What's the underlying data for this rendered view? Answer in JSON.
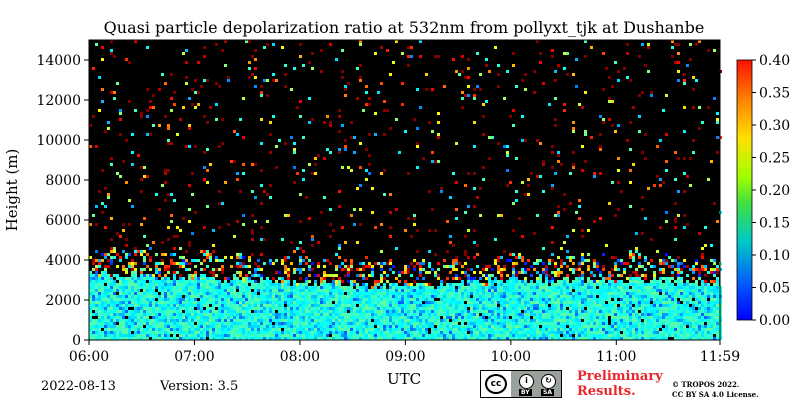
{
  "chart_data": {
    "type": "heatmap",
    "title": "Quasi particle depolarization ratio at 532nm from pollyxt_tjk at Dushanbe",
    "xlabel": "UTC",
    "ylabel": "Height (m)",
    "xticks": [
      "06:00",
      "07:00",
      "08:00",
      "09:00",
      "10:00",
      "11:00",
      "11:59"
    ],
    "xlim": [
      "06:00",
      "11:59"
    ],
    "yticks": [
      0,
      2000,
      4000,
      6000,
      8000,
      10000,
      12000,
      14000
    ],
    "ylim": [
      0,
      15000
    ],
    "colorbar": {
      "ticks": [
        "0.00",
        "0.05",
        "0.10",
        "0.15",
        "0.20",
        "0.25",
        "0.30",
        "0.35",
        "0.40"
      ],
      "range": [
        0,
        0.4
      ],
      "colormap": "jet"
    },
    "background_color": "#000000",
    "aerosol_layer": {
      "top_height_m": [
        3400,
        3200,
        2900,
        2800,
        3000,
        3100,
        3000
      ],
      "times": [
        "06:00",
        "07:00",
        "08:00",
        "09:00",
        "10:00",
        "11:00",
        "11:59"
      ],
      "typical_value_range": [
        0.1,
        0.2
      ]
    }
  },
  "footer": {
    "date": "2022-08-13",
    "version": "Version: 3.5",
    "preliminary_line1": "Preliminary",
    "preliminary_line2": "Results.",
    "license_line1": "© TROPOS 2022.",
    "license_line2": "CC BY SA 4.0 License.",
    "cc_badge": {
      "main": "cc",
      "by": "BY",
      "sa": "SA"
    }
  }
}
